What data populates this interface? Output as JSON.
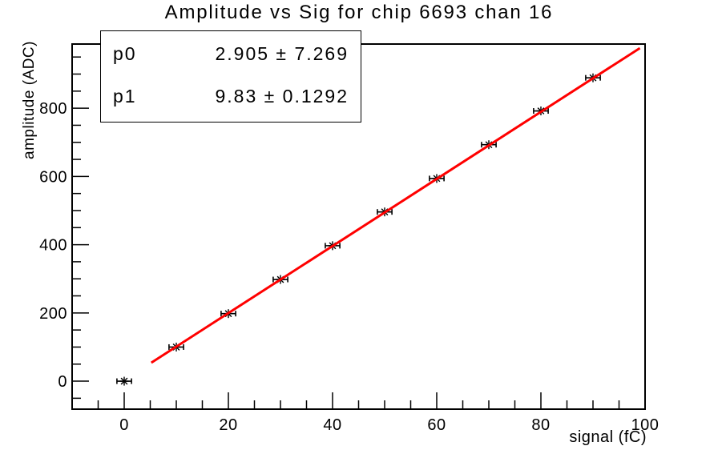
{
  "title": "Amplitude vs Sig for chip 6693 chan 16",
  "stats": {
    "rows": [
      {
        "label": "p0",
        "value": "2.905 ± 7.269"
      },
      {
        "label": "p1",
        "value": "9.83 ± 0.1292"
      }
    ]
  },
  "chart_data": {
    "type": "scatter",
    "title": "Amplitude vs Sig for chip 6693 chan 16",
    "xlabel": "signal (fC)",
    "ylabel": "amplitude (ADC)",
    "xlim": [
      -10,
      100
    ],
    "ylim": [
      -82,
      988
    ],
    "x_major_ticks": [
      0,
      20,
      40,
      60,
      80,
      100
    ],
    "x_minor_step": 5,
    "y_major_ticks": [
      0,
      200,
      400,
      600,
      800
    ],
    "y_minor_step": 50,
    "grid": false,
    "frame": true,
    "legend_position": "none",
    "points": {
      "x": [
        0,
        10,
        20,
        30,
        40,
        50,
        60,
        70,
        80,
        90
      ],
      "y": [
        0,
        100,
        198,
        298,
        397,
        496,
        594,
        693,
        792,
        889
      ],
      "x_err": 1.4,
      "marker": "star",
      "color": "#000000"
    },
    "fit": {
      "p0": 2.905,
      "p1": 9.83,
      "x_start": 5.2,
      "x_end": 99.0,
      "color": "#ff0000",
      "line_width": 3
    }
  }
}
